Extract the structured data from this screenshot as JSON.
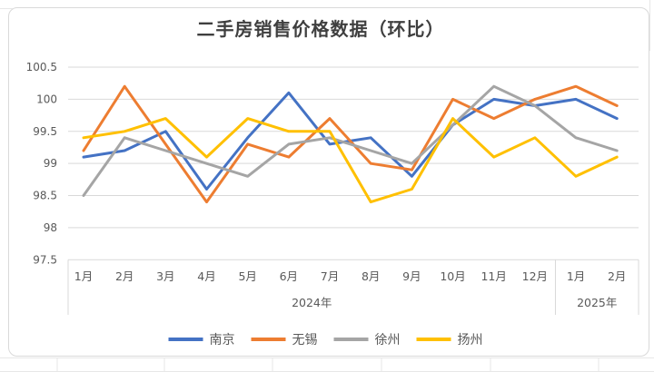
{
  "chart_data": {
    "type": "line",
    "title": "二手房销售价格数据（环比）",
    "x_categories": [
      "1月",
      "2月",
      "3月",
      "4月",
      "5月",
      "6月",
      "7月",
      "8月",
      "9月",
      "10月",
      "11月",
      "12月",
      "1月",
      "2月"
    ],
    "x_groups": [
      {
        "label": "2024年",
        "span": 12
      },
      {
        "label": "2025年",
        "span": 2
      }
    ],
    "y_ticks": [
      "100.5",
      "100",
      "99.5",
      "99",
      "98.5",
      "98",
      "97.5"
    ],
    "ylim": [
      97.5,
      100.5
    ],
    "grid": true,
    "legend_position": "bottom",
    "series": [
      {
        "name": "南京",
        "color": "#4472C4",
        "values": [
          99.1,
          99.2,
          99.5,
          98.6,
          99.4,
          100.1,
          99.3,
          99.4,
          98.8,
          99.6,
          100.0,
          99.9,
          100.0,
          99.7
        ]
      },
      {
        "name": "无锡",
        "color": "#ED7D31",
        "values": [
          99.2,
          100.2,
          99.3,
          98.4,
          99.3,
          99.1,
          99.7,
          99.0,
          98.9,
          100.0,
          99.7,
          100.0,
          100.2,
          99.9
        ]
      },
      {
        "name": "徐州",
        "color": "#A5A5A5",
        "values": [
          98.5,
          99.4,
          99.2,
          99.0,
          98.8,
          99.3,
          99.4,
          99.2,
          99.0,
          99.6,
          100.2,
          99.9,
          99.4,
          99.2
        ]
      },
      {
        "name": "扬州",
        "color": "#FFC000",
        "values": [
          99.4,
          99.5,
          99.7,
          99.1,
          99.7,
          99.5,
          99.5,
          98.4,
          98.6,
          99.7,
          99.1,
          99.4,
          98.8,
          99.1
        ]
      }
    ],
    "axis_text_color": "#595959",
    "gridline_color": "#d9d9d9"
  }
}
